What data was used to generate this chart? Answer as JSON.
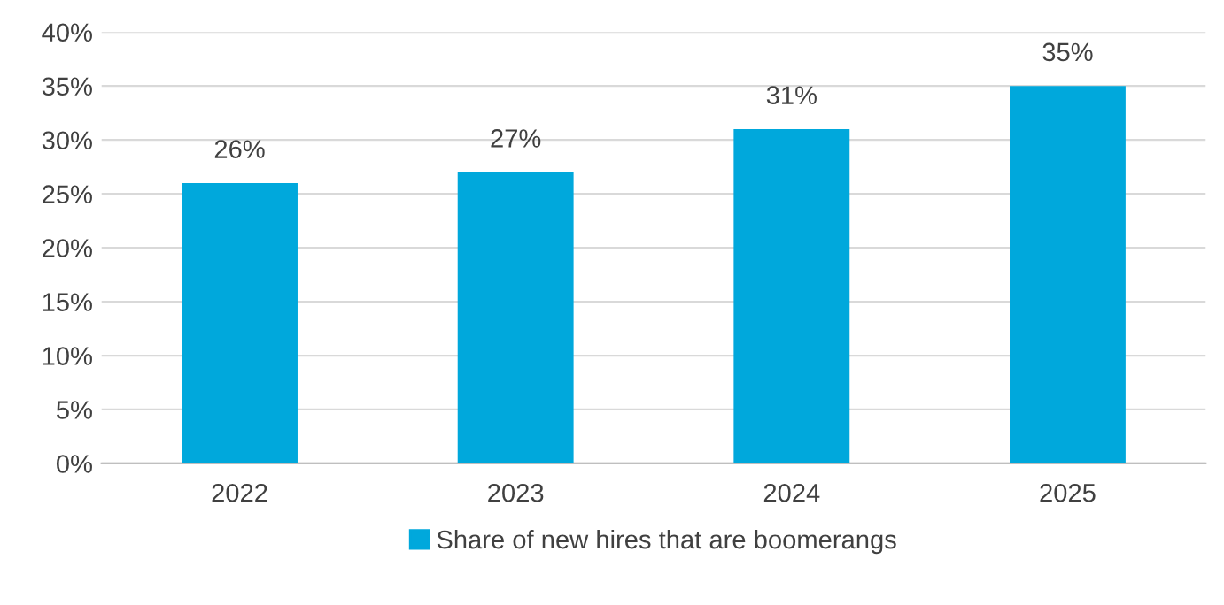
{
  "chart_data": {
    "type": "bar",
    "categories": [
      "2022",
      "2023",
      "2024",
      "2025"
    ],
    "series": [
      {
        "name": "Share of new hires that are boomerangs",
        "color": "#00a8dc",
        "values": [
          26,
          27,
          31,
          35
        ],
        "value_labels": [
          "26%",
          "27%",
          "31%",
          "35%"
        ]
      }
    ],
    "ylim": [
      0,
      40
    ],
    "yticks": [
      {
        "value": 0,
        "label": "0%"
      },
      {
        "value": 5,
        "label": "5%"
      },
      {
        "value": 10,
        "label": "10%"
      },
      {
        "value": 15,
        "label": "15%"
      },
      {
        "value": 20,
        "label": "20%"
      },
      {
        "value": 25,
        "label": "25%"
      },
      {
        "value": 30,
        "label": "30%"
      },
      {
        "value": 35,
        "label": "35%"
      },
      {
        "value": 40,
        "label": "40%"
      }
    ],
    "grid": "y",
    "legend": "bottom"
  }
}
